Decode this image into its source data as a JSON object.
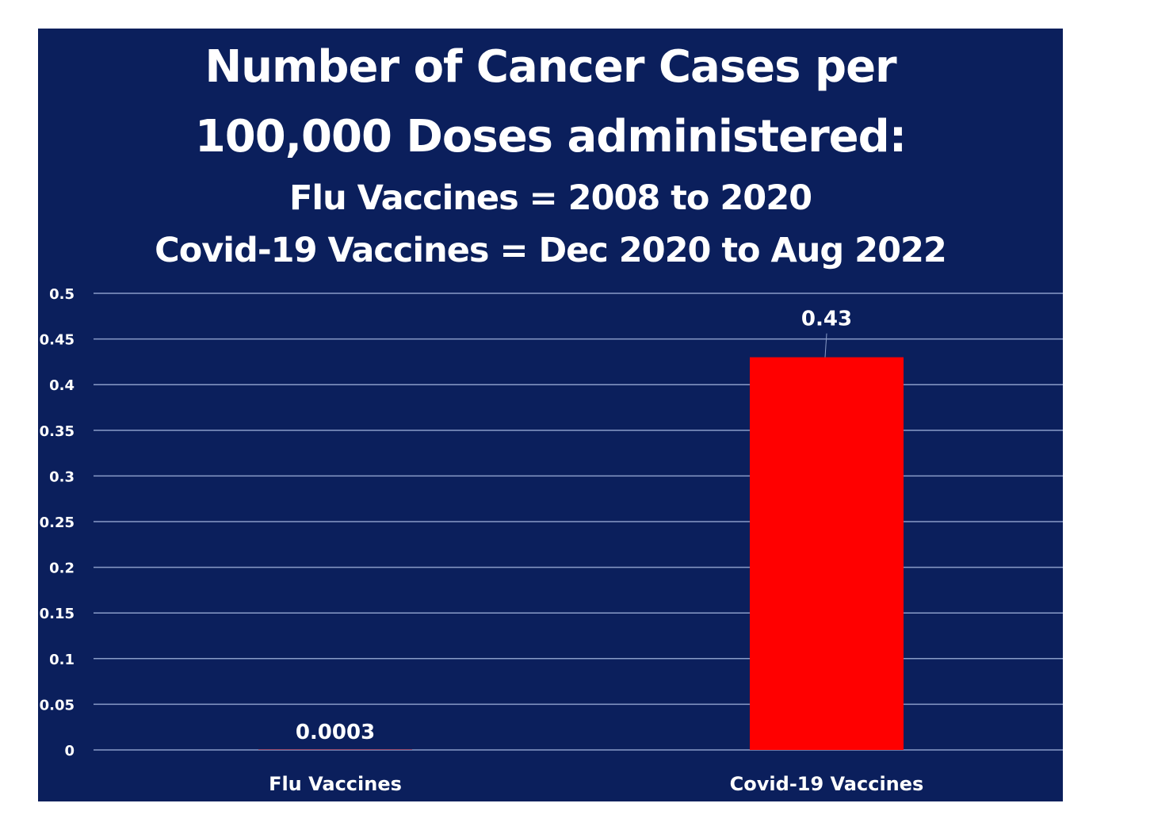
{
  "chart_data": {
    "type": "bar",
    "title_lines": [
      "Number of Cancer Cases per",
      "100,000 Doses administered:"
    ],
    "subtitle_lines": [
      "Flu Vaccines = 2008 to 2020",
      "Covid-19 Vaccines = Dec 2020 to Aug 2022"
    ],
    "categories": [
      "Flu Vaccines",
      "Covid-19 Vaccines"
    ],
    "values": [
      0.0003,
      0.43
    ],
    "data_labels": [
      "0.0003",
      "0.43"
    ],
    "ylim": [
      0,
      0.5
    ],
    "yticks": [
      0,
      0.05,
      0.1,
      0.15,
      0.2,
      0.25,
      0.3,
      0.35,
      0.4,
      0.45,
      0.5
    ],
    "ytick_labels": [
      "0",
      "0.05",
      "0.1",
      "0.15",
      "0.2",
      "0.25",
      "0.3",
      "0.35",
      "0.4",
      "0.45",
      "0.5"
    ],
    "xlabel": "",
    "ylabel": "",
    "grid": true,
    "legend": "none",
    "colors": {
      "background": "#0b1f5c",
      "bar": "#ff0000",
      "gridline": "#8a9cc8",
      "text": "#ffffff"
    }
  }
}
